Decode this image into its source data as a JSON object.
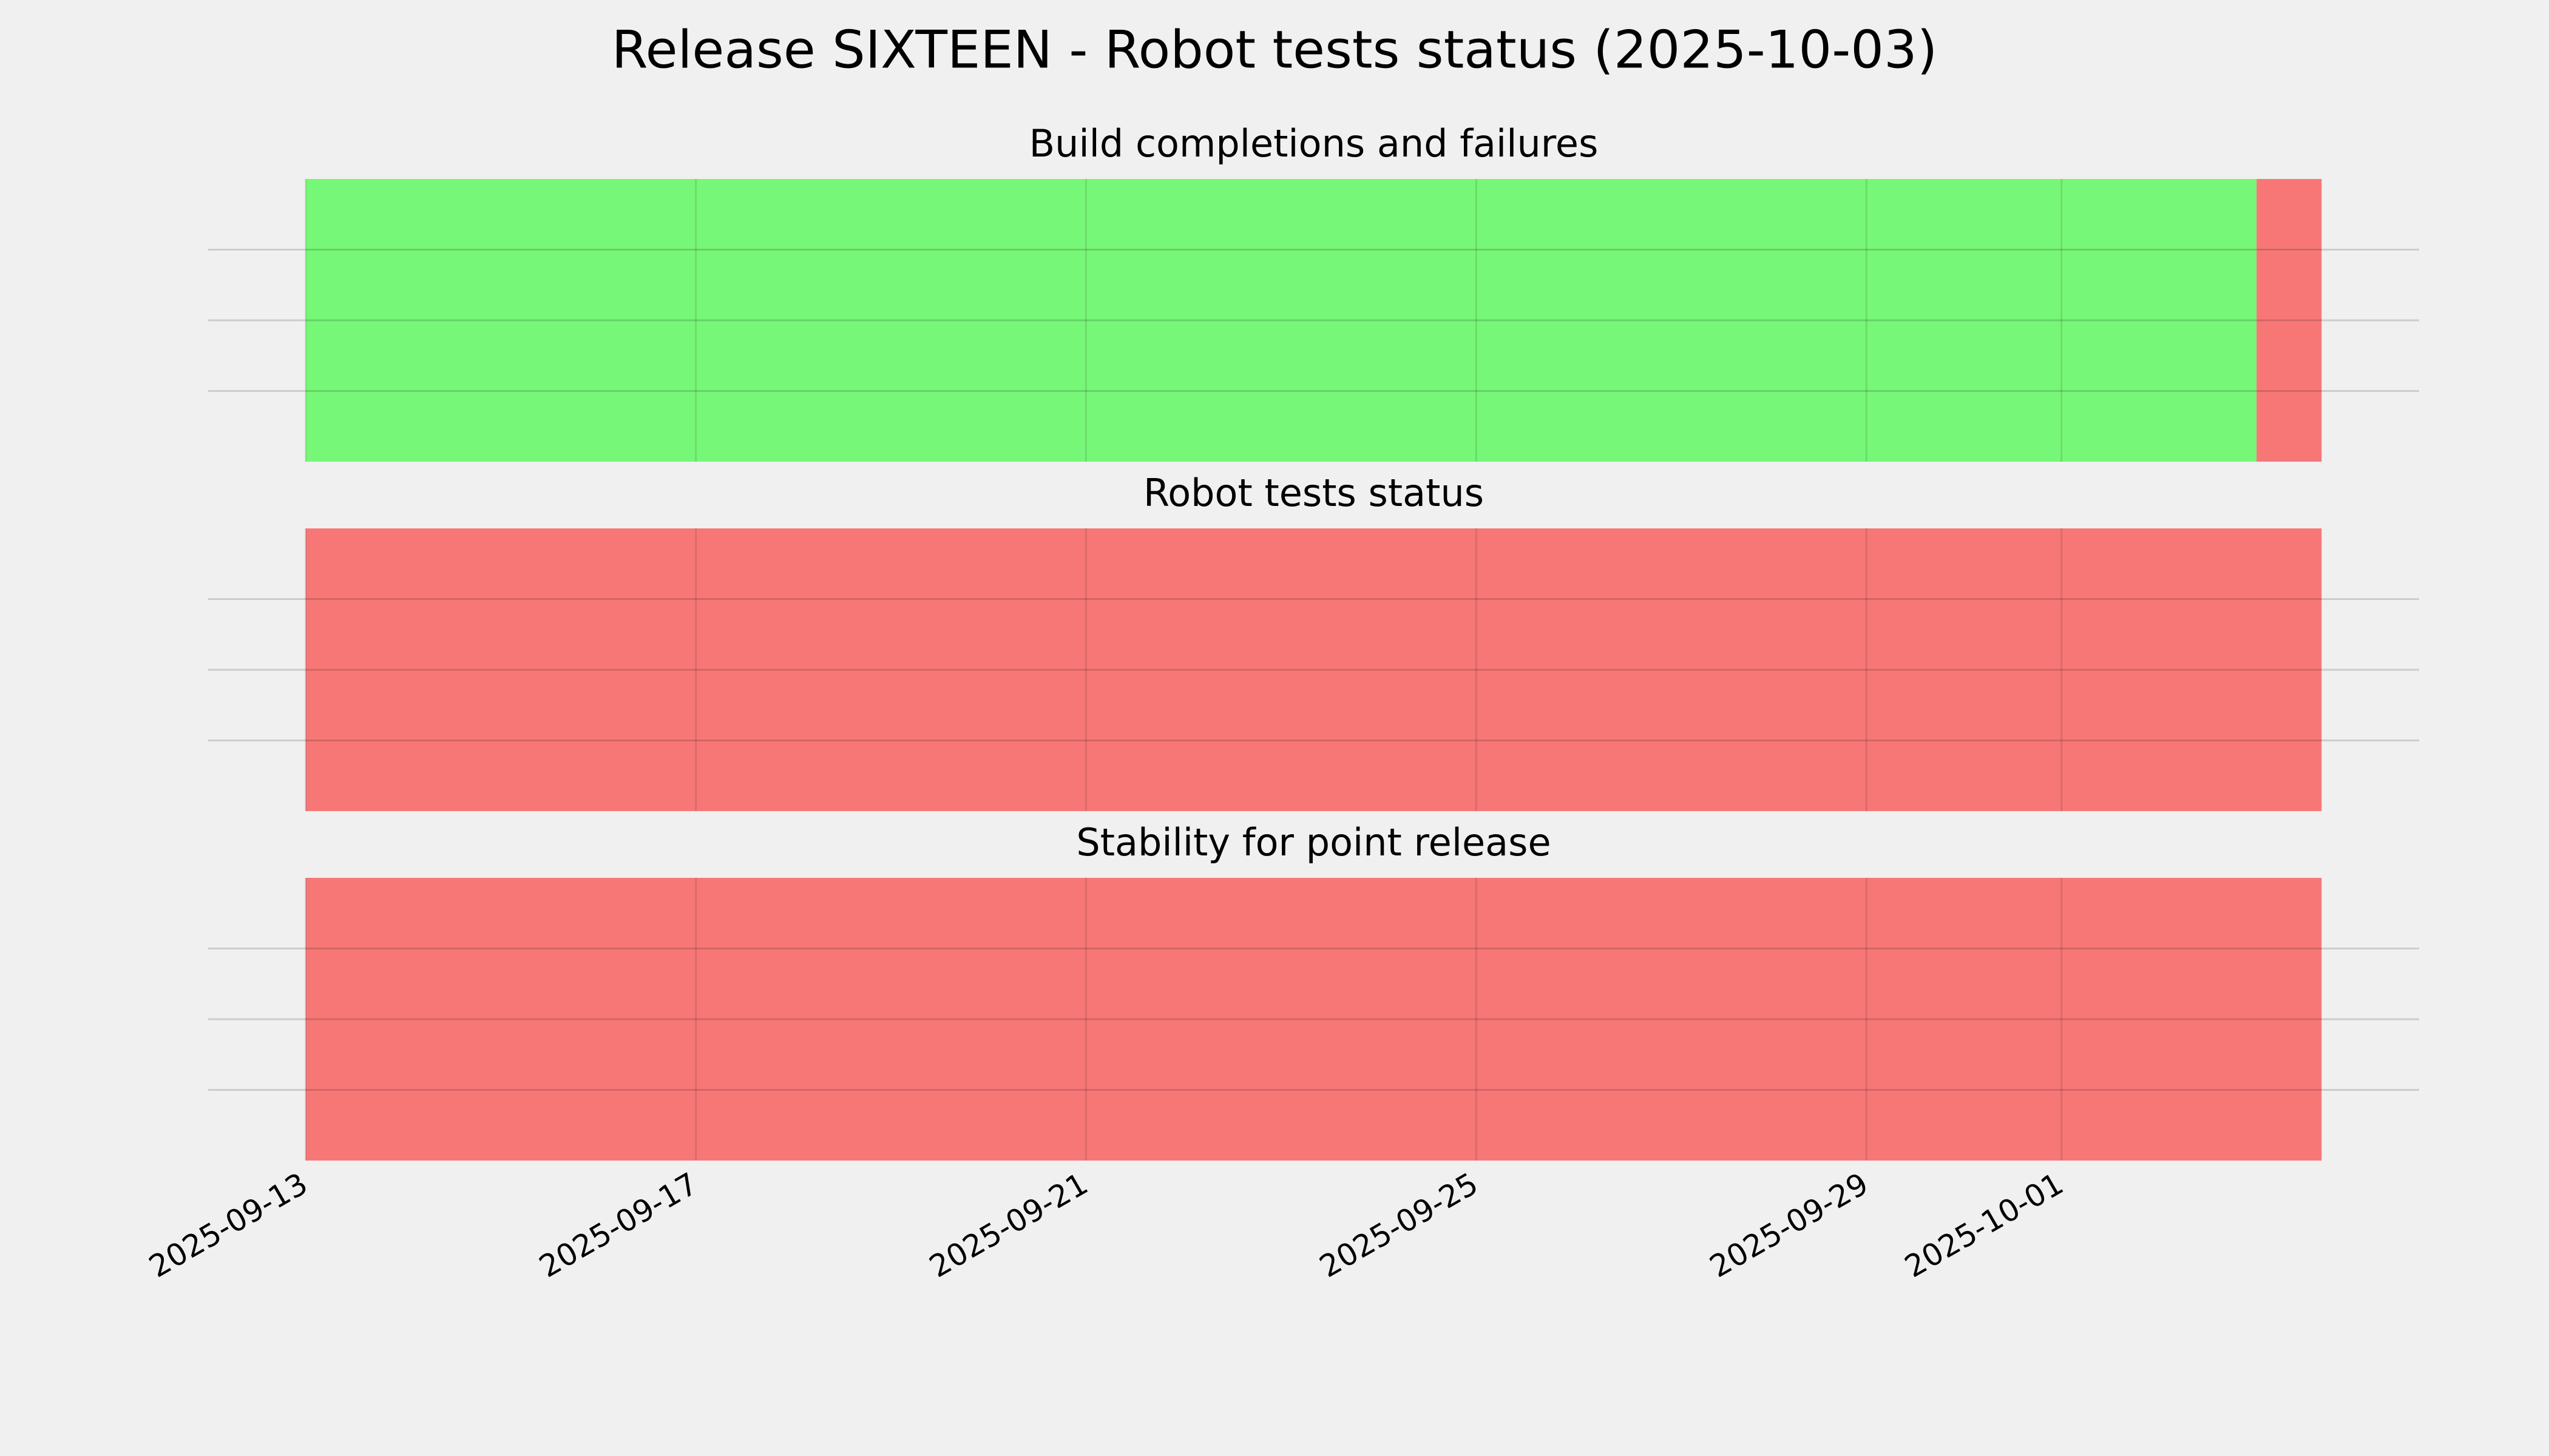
{
  "chart_data": {
    "type": "timeline",
    "title": "Release SIXTEEN - Robot tests status (2025-10-03)",
    "panels": [
      {
        "title": "Build completions and failures",
        "segments": [
          {
            "start": "2025-09-13",
            "end": "2025-10-03",
            "color": "#77f777"
          },
          {
            "start": "2025-10-03",
            "end": "2025-10-03T16:00",
            "color": "#f77777"
          }
        ]
      },
      {
        "title": "Robot tests status",
        "segments": [
          {
            "start": "2025-09-13",
            "end": "2025-10-03T16:00",
            "color": "#f77777"
          }
        ]
      },
      {
        "title": "Stability for point release",
        "segments": [
          {
            "start": "2025-09-13",
            "end": "2025-10-03T16:00",
            "color": "#f77777"
          }
        ]
      }
    ],
    "xlim": [
      "2025-09-12",
      "2025-10-04T16:00"
    ],
    "xticks": [
      "2025-09-13",
      "2025-09-17",
      "2025-09-21",
      "2025-09-25",
      "2025-09-29",
      "2025-10-01"
    ],
    "ylim": [
      0,
      1
    ],
    "yticks": [
      0.25,
      0.5,
      0.75
    ],
    "grid": true
  }
}
